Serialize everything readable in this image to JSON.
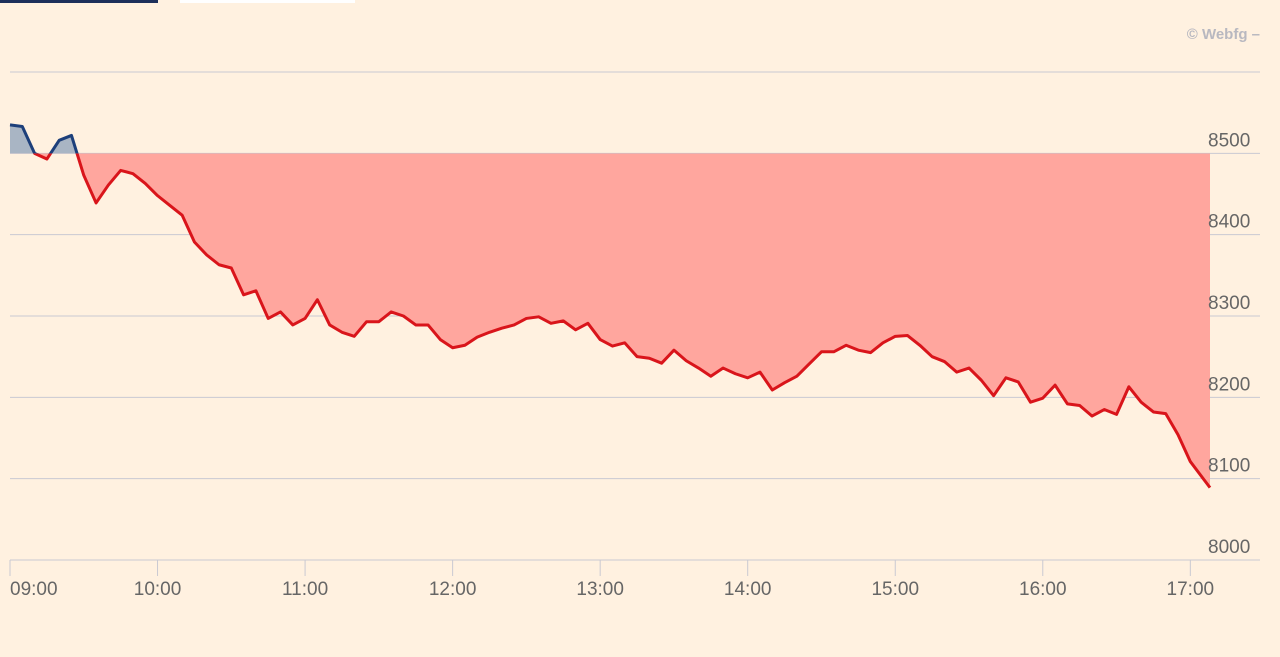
{
  "chart_data": {
    "type": "line",
    "source": "© Webfg –",
    "baseline": 8500,
    "xlim": [
      "09:00",
      "17:08"
    ],
    "ylim": [
      8000,
      8600
    ],
    "yticks": [
      8000,
      8100,
      8200,
      8300,
      8400,
      8500
    ],
    "xticks": [
      "09:00",
      "10:00",
      "11:00",
      "12:00",
      "13:00",
      "14:00",
      "15:00",
      "16:00",
      "17:00"
    ],
    "grid": true,
    "colors": {
      "above": "#1d3f7a",
      "above_fill": "#a9b5c4",
      "below": "#d9151b",
      "below_fill": "#ffa69e"
    },
    "series": [
      {
        "x": [
          "09:00",
          "09:05",
          "09:10",
          "09:15",
          "09:20",
          "09:25",
          "09:30",
          "09:35",
          "09:40",
          "09:45",
          "09:50",
          "09:55",
          "10:00",
          "10:05",
          "10:10",
          "10:15",
          "10:20",
          "10:25",
          "10:30",
          "10:35",
          "10:40",
          "10:45",
          "10:50",
          "10:55",
          "11:00",
          "11:05",
          "11:10",
          "11:15",
          "11:20",
          "11:25",
          "11:30",
          "11:35",
          "11:40",
          "11:45",
          "11:50",
          "11:55",
          "12:00",
          "12:05",
          "12:10",
          "12:15",
          "12:20",
          "12:25",
          "12:30",
          "12:35",
          "12:40",
          "12:45",
          "12:50",
          "12:55",
          "13:00",
          "13:05",
          "13:10",
          "13:15",
          "13:20",
          "13:25",
          "13:30",
          "13:35",
          "13:40",
          "13:45",
          "13:50",
          "13:55",
          "14:00",
          "14:05",
          "14:10",
          "14:15",
          "14:20",
          "14:25",
          "14:30",
          "14:35",
          "14:40",
          "14:45",
          "14:50",
          "14:55",
          "15:00",
          "15:05",
          "15:10",
          "15:15",
          "15:20",
          "15:25",
          "15:30",
          "15:35",
          "15:40",
          "15:45",
          "15:50",
          "15:55",
          "16:00",
          "16:05",
          "16:10",
          "16:15",
          "16:20",
          "16:25",
          "16:30",
          "16:35",
          "16:40",
          "16:45",
          "16:50",
          "16:55",
          "17:00",
          "17:05",
          "17:08"
        ],
        "values": [
          8535,
          8533,
          8500,
          8493,
          8516,
          8522,
          8473,
          8439,
          8461,
          8479,
          8475,
          8463,
          8448,
          8436,
          8424,
          8391,
          8375,
          8363,
          8359,
          8326,
          8331,
          8297,
          8305,
          8289,
          8297,
          8320,
          8289,
          8280,
          8275,
          8293,
          8293,
          8305,
          8300,
          8289,
          8289,
          8271,
          8261,
          8264,
          8274,
          8280,
          8285,
          8289,
          8297,
          8299,
          8291,
          8294,
          8283,
          8291,
          8271,
          8263,
          8267,
          8250,
          8248,
          8242,
          8258,
          8245,
          8236,
          8226,
          8236,
          8229,
          8224,
          8231,
          8209,
          8218,
          8226,
          8241,
          8256,
          8256,
          8264,
          8258,
          8255,
          8267,
          8275,
          8276,
          8264,
          8250,
          8244,
          8231,
          8236,
          8221,
          8202,
          8224,
          8219,
          8194,
          8199,
          8215,
          8192,
          8190,
          8177,
          8185,
          8179,
          8213,
          8194,
          8182,
          8180,
          8154,
          8121,
          8101,
          8089
        ]
      }
    ]
  }
}
